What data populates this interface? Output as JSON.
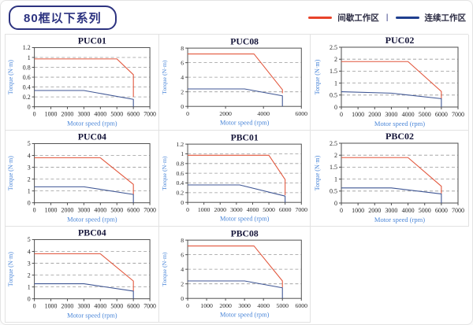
{
  "header": {
    "title": "80框以下系列",
    "legend": {
      "intermittent": {
        "label": "间歇工作区",
        "color": "#e8432a"
      },
      "separator": "|",
      "continuous": {
        "label": "连续工作区",
        "color": "#1f3f8f"
      }
    }
  },
  "theme": {
    "intermittent_color": "#e2573d",
    "continuous_color": "#3f5694",
    "legend_red": "#e8432a",
    "legend_blue": "#1f3f8f",
    "grid_color": "#9a9a9a",
    "box_color": "#4d4d4d",
    "tick_color": "#262626",
    "axis_label_color": "#4a86d8",
    "title_color": "#16163a"
  },
  "chart_data": [
    {
      "type": "line",
      "title": "PUC01",
      "xlabel": "Motor speed (rpm)",
      "ylabel": "Torque (N·m)",
      "xlim": [
        0,
        7000
      ],
      "xticks": [
        0,
        1000,
        2000,
        3000,
        4000,
        5000,
        6000,
        7000
      ],
      "ylim": [
        0,
        1.2
      ],
      "yticks": [
        0,
        0.2,
        0.4,
        0.6,
        0.8,
        1,
        1.2
      ],
      "grid": "horizontal-dashed",
      "legend_position": "none",
      "series": [
        {
          "name": "间歇工作区",
          "color_key": "intermittent",
          "points": [
            [
              0,
              0.97
            ],
            [
              5000,
              0.97
            ],
            [
              6000,
              0.65
            ],
            [
              6000,
              0.2
            ]
          ]
        },
        {
          "name": "连续工作区",
          "color_key": "continuous",
          "points": [
            [
              0,
              0.33
            ],
            [
              3000,
              0.33
            ],
            [
              6000,
              0.15
            ],
            [
              6000,
              0
            ]
          ]
        }
      ]
    },
    {
      "type": "line",
      "title": "PUC08",
      "xlabel": "Motor speed (rpm)",
      "ylabel": "Torque (N·m)",
      "xlim": [
        0,
        6000
      ],
      "xticks": [
        0,
        2000,
        4000,
        6000
      ],
      "ylim": [
        0,
        8
      ],
      "yticks": [
        0,
        2,
        4,
        6,
        8
      ],
      "grid": "horizontal-dashed",
      "legend_position": "none",
      "series": [
        {
          "name": "间歇工作区",
          "color_key": "intermittent",
          "points": [
            [
              0,
              7.2
            ],
            [
              3500,
              7.2
            ],
            [
              5000,
              2.3
            ],
            [
              5000,
              1.8
            ]
          ]
        },
        {
          "name": "连续工作区",
          "color_key": "continuous",
          "points": [
            [
              0,
              2.4
            ],
            [
              3000,
              2.4
            ],
            [
              5000,
              1.45
            ],
            [
              5000,
              0
            ]
          ]
        }
      ]
    },
    {
      "type": "line",
      "title": "PUC02",
      "xlabel": "Motor speed (rpm)",
      "ylabel": "Torque (N·m)",
      "xlim": [
        0,
        7000
      ],
      "xticks": [
        0,
        1000,
        2000,
        3000,
        4000,
        5000,
        6000,
        7000
      ],
      "ylim": [
        0,
        2.5
      ],
      "yticks": [
        0,
        0.5,
        1,
        1.5,
        2,
        2.5
      ],
      "grid": "horizontal-dashed",
      "legend_position": "none",
      "series": [
        {
          "name": "间歇工作区",
          "color_key": "intermittent",
          "points": [
            [
              0,
              1.9
            ],
            [
              4000,
              1.9
            ],
            [
              6000,
              0.65
            ],
            [
              6000,
              0.35
            ]
          ]
        },
        {
          "name": "连续工作区",
          "color_key": "continuous",
          "points": [
            [
              0,
              0.64
            ],
            [
              3000,
              0.58
            ],
            [
              6000,
              0.35
            ],
            [
              6000,
              0
            ]
          ]
        }
      ]
    },
    {
      "type": "line",
      "title": "PUC04",
      "xlabel": "Motor speed (rpm)",
      "ylabel": "Torque (N·m)",
      "xlim": [
        0,
        7000
      ],
      "xticks": [
        0,
        1000,
        2000,
        3000,
        4000,
        5000,
        6000,
        7000
      ],
      "ylim": [
        0,
        5
      ],
      "yticks": [
        0,
        1,
        2,
        3,
        4,
        5
      ],
      "grid": "horizontal-dashed",
      "legend_position": "none",
      "series": [
        {
          "name": "间歇工作区",
          "color_key": "intermittent",
          "points": [
            [
              0,
              3.8
            ],
            [
              4000,
              3.8
            ],
            [
              6000,
              1.55
            ],
            [
              6000,
              0.7
            ]
          ]
        },
        {
          "name": "连续工作区",
          "color_key": "continuous",
          "points": [
            [
              0,
              1.35
            ],
            [
              3000,
              1.35
            ],
            [
              6000,
              0.7
            ],
            [
              6000,
              0
            ]
          ]
        }
      ]
    },
    {
      "type": "line",
      "title": "PBC01",
      "xlabel": "Motor speed (rpm)",
      "ylabel": "Torque (N·m)",
      "xlim": [
        0,
        7000
      ],
      "xticks": [
        0,
        1000,
        2000,
        3000,
        4000,
        5000,
        6000,
        7000
      ],
      "ylim": [
        0,
        1.2
      ],
      "yticks": [
        0,
        0.2,
        0.4,
        0.6,
        0.8,
        1,
        1.2
      ],
      "grid": "horizontal-dashed",
      "legend_position": "none",
      "series": [
        {
          "name": "间歇工作区",
          "color_key": "intermittent",
          "points": [
            [
              0,
              0.97
            ],
            [
              5000,
              0.97
            ],
            [
              6000,
              0.47
            ],
            [
              6000,
              0.15
            ]
          ]
        },
        {
          "name": "连续工作区",
          "color_key": "continuous",
          "points": [
            [
              0,
              0.36
            ],
            [
              3200,
              0.36
            ],
            [
              6000,
              0.13
            ],
            [
              6000,
              0
            ]
          ]
        }
      ]
    },
    {
      "type": "line",
      "title": "PBC02",
      "xlabel": "Motor speed (rpm)",
      "ylabel": "Torque (N·m)",
      "xlim": [
        0,
        7000
      ],
      "xticks": [
        0,
        1000,
        2000,
        3000,
        4000,
        5000,
        6000,
        7000
      ],
      "ylim": [
        0,
        2.5
      ],
      "yticks": [
        0,
        0.5,
        1,
        1.5,
        2,
        2.5
      ],
      "grid": "horizontal-dashed",
      "legend_position": "none",
      "series": [
        {
          "name": "间歇工作区",
          "color_key": "intermittent",
          "points": [
            [
              0,
              1.9
            ],
            [
              4000,
              1.9
            ],
            [
              6000,
              0.7
            ],
            [
              6000,
              0.4
            ]
          ]
        },
        {
          "name": "连续工作区",
          "color_key": "continuous",
          "points": [
            [
              0,
              0.63
            ],
            [
              3000,
              0.63
            ],
            [
              6000,
              0.38
            ],
            [
              6000,
              0
            ]
          ]
        }
      ]
    },
    {
      "type": "line",
      "title": "PBC04",
      "xlabel": "Motor speed (rpm)",
      "ylabel": "Torque (N·m)",
      "xlim": [
        0,
        7000
      ],
      "xticks": [
        0,
        1000,
        2000,
        3000,
        4000,
        5000,
        6000,
        7000
      ],
      "ylim": [
        0,
        5
      ],
      "yticks": [
        0,
        1,
        2,
        3,
        4,
        5
      ],
      "grid": "horizontal-dashed",
      "legend_position": "none",
      "series": [
        {
          "name": "间歇工作区",
          "color_key": "intermittent",
          "points": [
            [
              0,
              3.8
            ],
            [
              4000,
              3.8
            ],
            [
              6000,
              1.5
            ],
            [
              6000,
              0.65
            ]
          ]
        },
        {
          "name": "连续工作区",
          "color_key": "continuous",
          "points": [
            [
              0,
              1.27
            ],
            [
              3000,
              1.27
            ],
            [
              6000,
              0.65
            ],
            [
              6000,
              0
            ]
          ]
        }
      ]
    },
    {
      "type": "line",
      "title": "PBC08",
      "xlabel": "Motor speed (rpm)",
      "ylabel": "Torque (N·m)",
      "xlim": [
        0,
        6000
      ],
      "xticks": [
        0,
        1000,
        2000,
        3000,
        4000,
        5000,
        6000
      ],
      "ylim": [
        0,
        8
      ],
      "yticks": [
        0,
        2,
        4,
        6,
        8
      ],
      "grid": "horizontal-dashed",
      "legend_position": "none",
      "series": [
        {
          "name": "间歇工作区",
          "color_key": "intermittent",
          "points": [
            [
              0,
              7.2
            ],
            [
              3500,
              7.2
            ],
            [
              5000,
              2.4
            ],
            [
              5000,
              1.5
            ]
          ]
        },
        {
          "name": "连续工作区",
          "color_key": "continuous",
          "points": [
            [
              0,
              2.4
            ],
            [
              3000,
              2.4
            ],
            [
              5000,
              1.45
            ],
            [
              5000,
              0
            ]
          ]
        }
      ]
    }
  ]
}
